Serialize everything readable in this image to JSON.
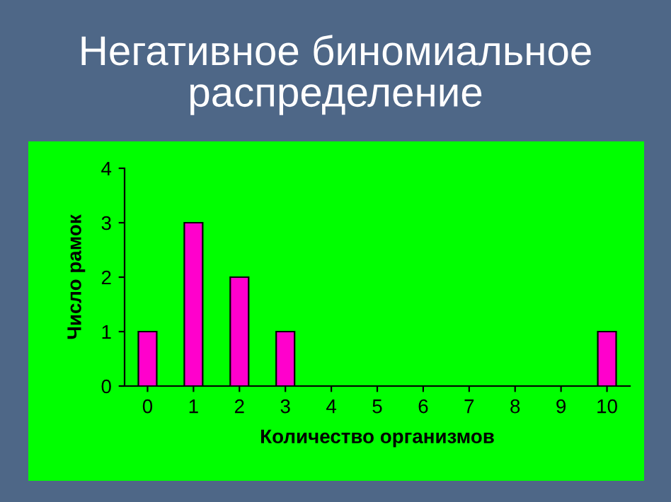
{
  "chart_data": {
    "type": "bar",
    "title": "Негативное биномиальное\nраспределение",
    "xlabel": "Количество организмов",
    "ylabel": "Число рамок",
    "categories": [
      "0",
      "1",
      "2",
      "3",
      "4",
      "5",
      "6",
      "7",
      "8",
      "9",
      "10"
    ],
    "values": [
      1,
      3,
      2,
      1,
      0,
      0,
      0,
      0,
      0,
      0,
      1
    ],
    "color": "#ff00cc",
    "ylim": [
      0,
      4
    ],
    "yticks": [
      0,
      1,
      2,
      3,
      4
    ],
    "legend": false
  }
}
